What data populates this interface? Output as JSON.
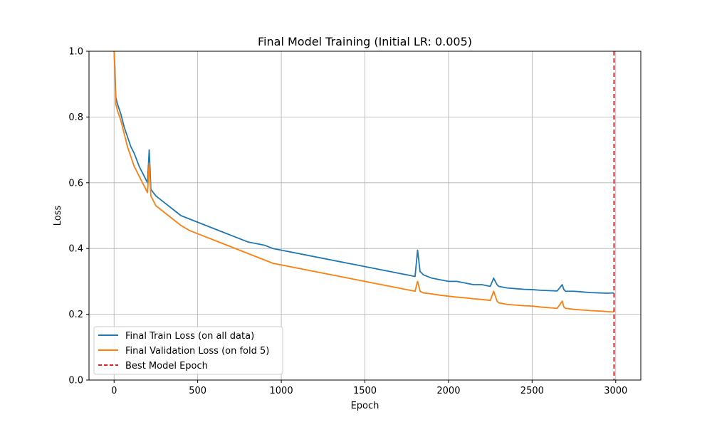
{
  "chart_data": {
    "type": "line",
    "title": "Final Model Training (Initial LR: 0.005)",
    "xlabel": "Epoch",
    "ylabel": "Loss",
    "xlim": [
      -150,
      3150
    ],
    "ylim": [
      0.0,
      1.0
    ],
    "x_ticks": [
      0,
      500,
      1000,
      1500,
      2000,
      2500,
      3000
    ],
    "y_ticks": [
      0.0,
      0.2,
      0.4,
      0.6,
      0.8,
      1.0
    ],
    "x_tick_labels": [
      "0",
      "500",
      "1000",
      "1500",
      "2000",
      "2500",
      "3000"
    ],
    "y_tick_labels": [
      "0.0",
      "0.2",
      "0.4",
      "0.6",
      "0.8",
      "1.0"
    ],
    "grid": true,
    "legend_position": "lower-left",
    "series": [
      {
        "name": "Final Train Loss (on all data)",
        "color": "#1f77b4",
        "style": "solid",
        "x": [
          0,
          5,
          10,
          20,
          40,
          60,
          80,
          100,
          120,
          150,
          180,
          200,
          210,
          220,
          250,
          300,
          350,
          400,
          450,
          500,
          550,
          600,
          650,
          700,
          750,
          800,
          850,
          900,
          950,
          1000,
          1050,
          1100,
          1150,
          1200,
          1250,
          1300,
          1350,
          1400,
          1450,
          1500,
          1550,
          1600,
          1650,
          1700,
          1750,
          1800,
          1815,
          1830,
          1850,
          1900,
          1950,
          2000,
          2050,
          2100,
          2150,
          2200,
          2250,
          2270,
          2290,
          2300,
          2350,
          2400,
          2450,
          2500,
          2550,
          2600,
          2650,
          2680,
          2690,
          2700,
          2750,
          2800,
          2850,
          2900,
          2950,
          2990
        ],
        "y": [
          1.0,
          0.95,
          0.86,
          0.84,
          0.81,
          0.77,
          0.74,
          0.71,
          0.69,
          0.65,
          0.62,
          0.6,
          0.7,
          0.58,
          0.56,
          0.54,
          0.52,
          0.5,
          0.49,
          0.48,
          0.47,
          0.46,
          0.45,
          0.44,
          0.43,
          0.42,
          0.415,
          0.41,
          0.4,
          0.395,
          0.39,
          0.385,
          0.38,
          0.375,
          0.37,
          0.365,
          0.36,
          0.355,
          0.35,
          0.345,
          0.34,
          0.335,
          0.33,
          0.325,
          0.32,
          0.315,
          0.395,
          0.33,
          0.32,
          0.31,
          0.305,
          0.3,
          0.3,
          0.295,
          0.29,
          0.29,
          0.285,
          0.31,
          0.29,
          0.285,
          0.28,
          0.278,
          0.276,
          0.275,
          0.273,
          0.272,
          0.271,
          0.29,
          0.275,
          0.27,
          0.27,
          0.268,
          0.266,
          0.265,
          0.264,
          0.265
        ]
      },
      {
        "name": "Final Validation Loss (on fold 5)",
        "color": "#ff7f0e",
        "style": "solid",
        "x": [
          0,
          5,
          10,
          20,
          40,
          60,
          80,
          100,
          120,
          150,
          180,
          200,
          210,
          220,
          250,
          300,
          350,
          400,
          450,
          500,
          550,
          600,
          650,
          700,
          750,
          800,
          850,
          900,
          950,
          1000,
          1050,
          1100,
          1150,
          1200,
          1250,
          1300,
          1350,
          1400,
          1450,
          1500,
          1550,
          1600,
          1650,
          1700,
          1750,
          1800,
          1815,
          1830,
          1850,
          1900,
          1950,
          2000,
          2050,
          2100,
          2150,
          2200,
          2250,
          2270,
          2290,
          2300,
          2350,
          2400,
          2450,
          2500,
          2550,
          2600,
          2650,
          2680,
          2690,
          2700,
          2750,
          2800,
          2850,
          2900,
          2950,
          2990
        ],
        "y": [
          1.0,
          0.94,
          0.84,
          0.82,
          0.79,
          0.75,
          0.71,
          0.68,
          0.65,
          0.62,
          0.59,
          0.57,
          0.66,
          0.56,
          0.53,
          0.51,
          0.49,
          0.47,
          0.455,
          0.445,
          0.435,
          0.425,
          0.415,
          0.405,
          0.395,
          0.385,
          0.375,
          0.365,
          0.355,
          0.35,
          0.345,
          0.34,
          0.335,
          0.33,
          0.325,
          0.32,
          0.315,
          0.31,
          0.305,
          0.3,
          0.295,
          0.29,
          0.285,
          0.28,
          0.275,
          0.27,
          0.3,
          0.27,
          0.265,
          0.262,
          0.258,
          0.255,
          0.252,
          0.25,
          0.247,
          0.245,
          0.242,
          0.27,
          0.24,
          0.235,
          0.23,
          0.228,
          0.226,
          0.225,
          0.222,
          0.22,
          0.218,
          0.24,
          0.222,
          0.218,
          0.215,
          0.213,
          0.211,
          0.21,
          0.208,
          0.207
        ]
      }
    ],
    "vlines": [
      {
        "name": "Best Model Epoch",
        "x": 2990,
        "color": "#d62728",
        "style": "dashed"
      }
    ]
  }
}
